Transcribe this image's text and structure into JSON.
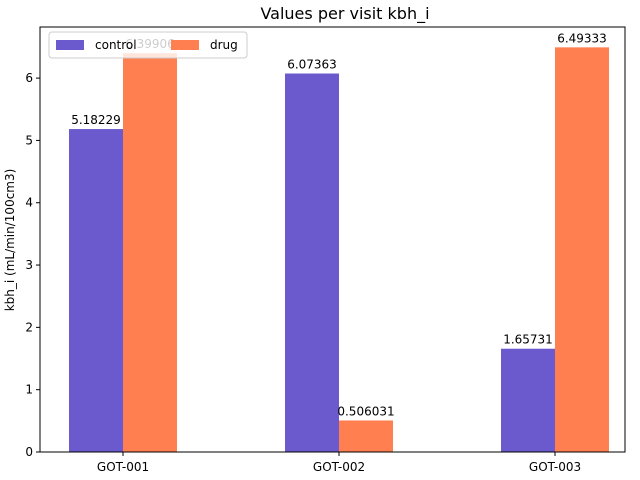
{
  "chart_data": {
    "type": "bar",
    "title": "Values per visit kbh_i",
    "xlabel": "",
    "ylabel": "kbh_i (mL/min/100cm3)",
    "categories": [
      "GOT-001",
      "GOT-002",
      "GOT-003"
    ],
    "series": [
      {
        "name": "control",
        "color": "#6a5acd",
        "values": [
          5.18229,
          6.07363,
          1.65731
        ],
        "labels": [
          "5.18229",
          "6.07363",
          "1.65731"
        ]
      },
      {
        "name": "drug",
        "color": "#ff7f50",
        "values": [
          6.39906,
          0.506031,
          6.49333
        ],
        "labels": [
          "6.39906",
          "0.506031",
          "6.49333"
        ]
      }
    ],
    "ylim": [
      0,
      6.82
    ],
    "yticks": [
      0,
      1,
      2,
      3,
      4,
      5,
      6
    ],
    "legend_position": "top-left",
    "grid": false
  }
}
